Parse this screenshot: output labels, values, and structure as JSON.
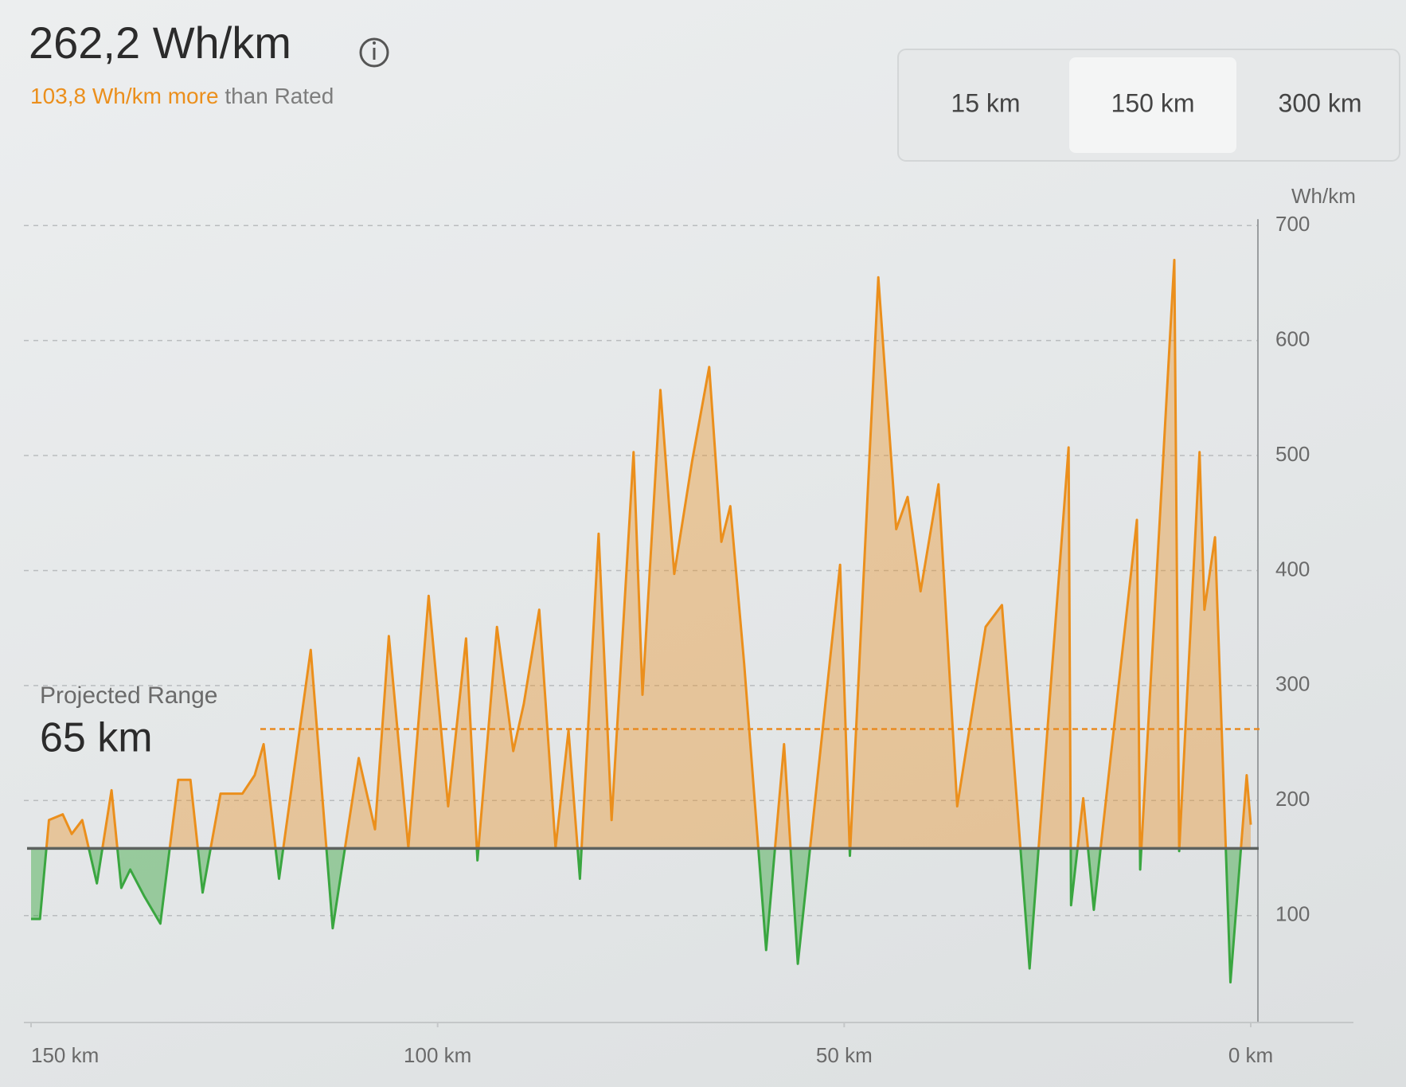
{
  "header": {
    "title": "262,2 Wh/km",
    "delta": "103,8 Wh/km more",
    "delta_suffix": "than Rated"
  },
  "tabs": {
    "items": [
      "15 km",
      "150 km",
      "300 km"
    ],
    "selected": 1
  },
  "projected_range": {
    "label": "Projected Range",
    "value": "65 km"
  },
  "chart_data": {
    "type": "area",
    "y_axis_label": "Wh/km",
    "x": [
      150,
      148.9,
      147.8,
      146.1,
      145,
      143.7,
      141.9,
      140.1,
      138.9,
      137.8,
      136.1,
      134.1,
      131.9,
      130.4,
      128.9,
      126.7,
      124,
      122.5,
      121.4,
      119.5,
      115.6,
      112.9,
      109.7,
      107.7,
      106,
      103.6,
      101.1,
      98.7,
      96.5,
      95.1,
      92.7,
      90.7,
      89.4,
      87.5,
      85.5,
      83.9,
      82.5,
      80.2,
      78.6,
      75.9,
      74.8,
      72.6,
      70.9,
      68.7,
      66.6,
      65.1,
      64,
      62.3,
      59.6,
      57.4,
      55.7,
      50.5,
      49.3,
      45.8,
      43.6,
      42.2,
      40.6,
      38.4,
      36.1,
      32.6,
      30.6,
      27.2,
      22.4,
      22.1,
      20.6,
      19.3,
      14,
      13.6,
      9.4,
      8.8,
      6.3,
      5.7,
      4.4,
      2.5,
      0.5,
      0
    ],
    "values": [
      97,
      97,
      183,
      188,
      171,
      183,
      128,
      209,
      124,
      140,
      117,
      93,
      218,
      218,
      120,
      206,
      206,
      222,
      249,
      132,
      331,
      89,
      237,
      175,
      343,
      159,
      378,
      195,
      341,
      148,
      351,
      243,
      284,
      366,
      159,
      261,
      132,
      432,
      183,
      503,
      292,
      557,
      397,
      495,
      577,
      425,
      456,
      319,
      70,
      249,
      58,
      405,
      152,
      655,
      436,
      464,
      382,
      475,
      195,
      351,
      370,
      54,
      507,
      109,
      202,
      105,
      444,
      140,
      670,
      156,
      503,
      366,
      429,
      42,
      222,
      179
    ],
    "baseline": 158.4,
    "average": 262.2,
    "above_color": "#eb8f1c",
    "below_color": "#3aa640",
    "average_color": "#e98a20",
    "xlim": [
      150,
      0
    ],
    "xticks": [
      {
        "value": 150,
        "label": "150 km"
      },
      {
        "value": 100,
        "label": "100 km"
      },
      {
        "value": 50,
        "label": "50 km"
      },
      {
        "value": 0,
        "label": "0 km"
      }
    ],
    "ylim": [
      7,
      705
    ],
    "yticks": [
      100,
      200,
      300,
      400,
      500,
      600,
      700
    ],
    "grid": true
  }
}
